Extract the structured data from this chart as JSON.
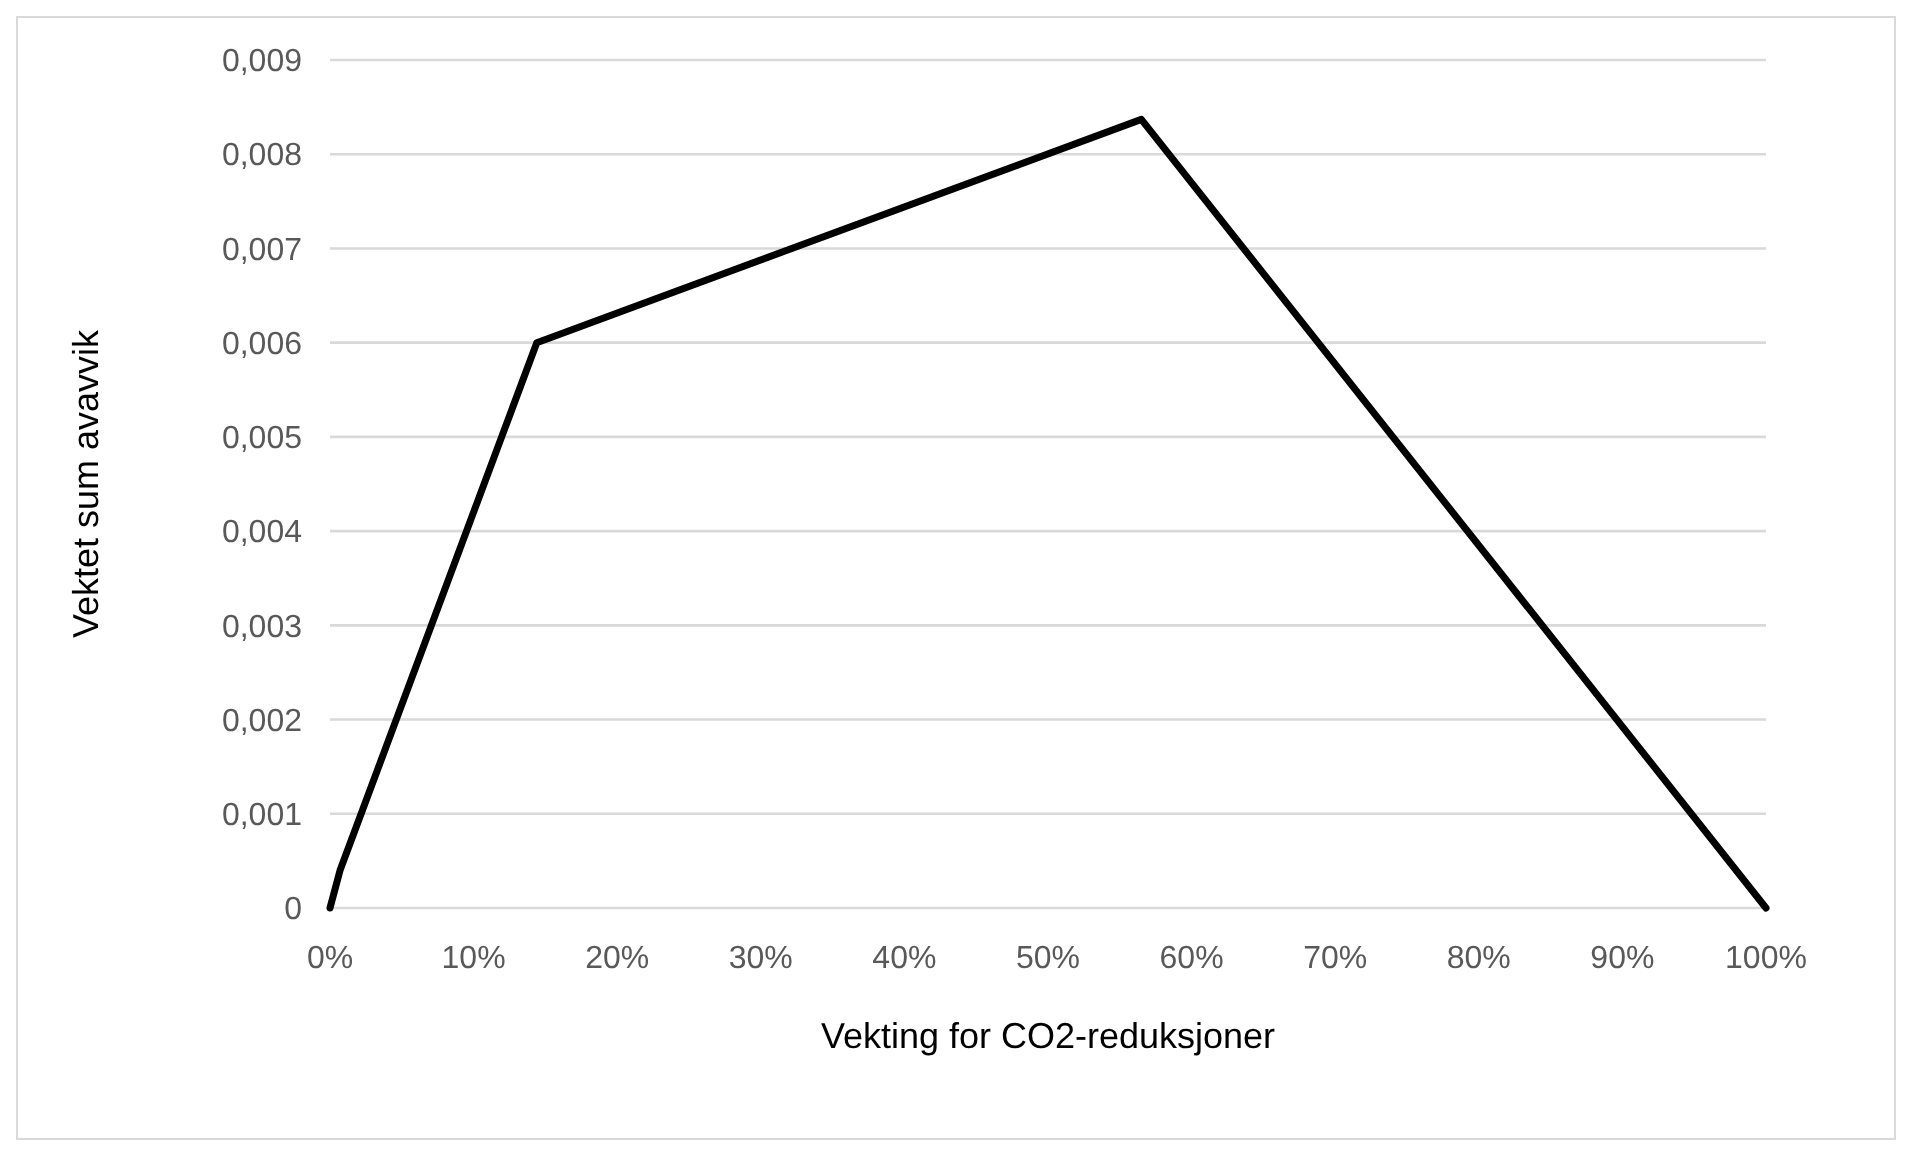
{
  "chart_data": {
    "type": "line",
    "xlabel": "Vekting for CO2-reduksjoner",
    "ylabel": "Vektet sum avavvik",
    "x": [
      0,
      0.7,
      14.4,
      56.5,
      100
    ],
    "series": [
      {
        "color": "#000000",
        "values": [
          0,
          0.0004,
          0.006,
          0.00837,
          0
        ]
      }
    ],
    "xlim": [
      0,
      100
    ],
    "xticks": [
      {
        "value": 0,
        "label": "0%"
      },
      {
        "value": 10,
        "label": "10%"
      },
      {
        "value": 20,
        "label": "20%"
      },
      {
        "value": 30,
        "label": "30%"
      },
      {
        "value": 40,
        "label": "40%"
      },
      {
        "value": 50,
        "label": "50%"
      },
      {
        "value": 60,
        "label": "60%"
      },
      {
        "value": 70,
        "label": "70%"
      },
      {
        "value": 80,
        "label": "80%"
      },
      {
        "value": 90,
        "label": "90%"
      },
      {
        "value": 100,
        "label": "100%"
      }
    ],
    "ylim": [
      0,
      0.009
    ],
    "yticks": [
      {
        "value": 0,
        "label": "0"
      },
      {
        "value": 0.001,
        "label": "0,001"
      },
      {
        "value": 0.002,
        "label": "0,002"
      },
      {
        "value": 0.003,
        "label": "0,003"
      },
      {
        "value": 0.004,
        "label": "0,004"
      },
      {
        "value": 0.005,
        "label": "0,005"
      },
      {
        "value": 0.006,
        "label": "0,006"
      },
      {
        "value": 0.007,
        "label": "0,007"
      },
      {
        "value": 0.008,
        "label": "0,008"
      },
      {
        "value": 0.009,
        "label": "0,009"
      }
    ],
    "grid": "y"
  }
}
